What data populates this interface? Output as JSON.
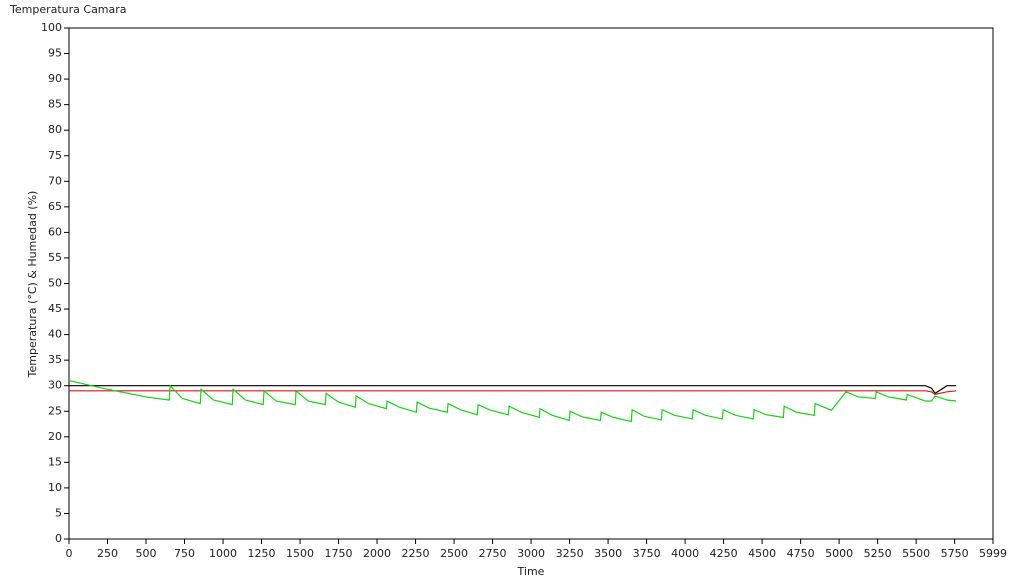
{
  "chart_data": {
    "type": "line",
    "title": "Temperatura Camara",
    "x_label": "Time",
    "y_label": "Temperatura (°C) & Humedad (%)",
    "xlim": [
      0,
      5999
    ],
    "ylim": [
      0,
      100
    ],
    "xticks": [
      0,
      250,
      500,
      750,
      1000,
      1250,
      1500,
      1750,
      2000,
      2250,
      2500,
      2750,
      3000,
      3250,
      3500,
      3750,
      4000,
      4250,
      4500,
      4750,
      5000,
      5250,
      5500,
      5750,
      5999
    ],
    "yticks": [
      0,
      5,
      10,
      15,
      20,
      25,
      30,
      35,
      40,
      45,
      50,
      55,
      60,
      65,
      70,
      75,
      80,
      85,
      90,
      95,
      100
    ],
    "grid": false,
    "x": [
      0,
      250,
      500,
      651,
      656,
      736,
      852,
      857,
      937,
      1060,
      1065,
      1145,
      1261,
      1266,
      1346,
      1469,
      1474,
      1554,
      1664,
      1669,
      1749,
      1859,
      1864,
      1944,
      2060,
      2065,
      2145,
      2255,
      2260,
      2340,
      2456,
      2461,
      2541,
      2651,
      2656,
      2736,
      2852,
      2857,
      2937,
      3053,
      3058,
      3138,
      3248,
      3253,
      3333,
      3450,
      3455,
      3535,
      3651,
      3656,
      3736,
      3846,
      3851,
      3931,
      4047,
      4052,
      4132,
      4242,
      4247,
      4327,
      4443,
      4448,
      4528,
      4638,
      4643,
      4723,
      4839,
      4844,
      4950,
      5045,
      5125,
      5235,
      5240,
      5320,
      5437,
      5442,
      5522,
      5560,
      5600,
      5623,
      5700,
      5760
    ],
    "series": [
      {
        "color": "#000000",
        "values": [
          30,
          30,
          30,
          30,
          30,
          30,
          30,
          30,
          30,
          30,
          30,
          30,
          30,
          30,
          30,
          30,
          30,
          30,
          30,
          30,
          30,
          30,
          30,
          30,
          30,
          30,
          30,
          30,
          30,
          30,
          30,
          30,
          30,
          30,
          30,
          30,
          30,
          30,
          30,
          30,
          30,
          30,
          30,
          30,
          30,
          30,
          30,
          30,
          30,
          30,
          30,
          30,
          30,
          30,
          30,
          30,
          30,
          30,
          30,
          30,
          30,
          30,
          30,
          30,
          30,
          30,
          30,
          30,
          30,
          30,
          30,
          30,
          30,
          30,
          30,
          30,
          30,
          30,
          29.5,
          28.5,
          30,
          30
        ]
      },
      {
        "color": "#e0151d",
        "values": [
          29,
          29,
          29,
          29,
          29,
          29,
          29,
          29,
          29,
          29,
          29,
          29,
          29,
          29,
          29,
          29,
          29,
          29,
          29,
          29,
          29,
          29,
          29,
          29,
          29,
          29,
          29,
          29,
          29,
          29,
          29,
          29,
          29,
          29,
          29,
          29,
          29,
          29,
          29,
          29,
          29,
          29,
          29,
          29,
          29,
          29,
          29,
          29,
          29,
          29,
          29,
          29,
          29,
          29,
          29,
          29,
          29,
          29,
          29,
          29,
          29,
          29,
          29,
          29,
          29,
          29,
          29,
          29,
          29,
          29,
          29,
          29,
          29,
          29,
          29,
          29,
          29,
          29,
          28.8,
          28.3,
          28.8,
          29
        ]
      },
      {
        "color": "#19d219",
        "values": [
          31,
          29.3,
          27.8,
          27.2,
          30,
          27.5,
          26.5,
          29.3,
          27.2,
          26.3,
          29.3,
          27.2,
          26.3,
          29,
          27,
          26.3,
          29,
          27,
          26.3,
          28.5,
          26.8,
          25.8,
          28,
          26.5,
          25.5,
          27,
          25.8,
          24.8,
          26.8,
          25.6,
          24.8,
          26.5,
          25.3,
          24.3,
          26.3,
          25.2,
          24.3,
          26,
          24.8,
          23.8,
          25.5,
          24.2,
          23.2,
          25,
          23.9,
          23.2,
          24.8,
          23.8,
          23,
          25.3,
          24,
          23.3,
          25.3,
          24.2,
          23.5,
          25.3,
          24.2,
          23.5,
          25.3,
          24.2,
          23.5,
          25.3,
          24.3,
          23.8,
          26,
          24.8,
          24.2,
          26.5,
          25.2,
          28.8,
          27.8,
          27.5,
          28.8,
          27.8,
          27.2,
          28.3,
          27.4,
          27,
          27,
          28,
          27.2,
          27
        ]
      }
    ]
  }
}
